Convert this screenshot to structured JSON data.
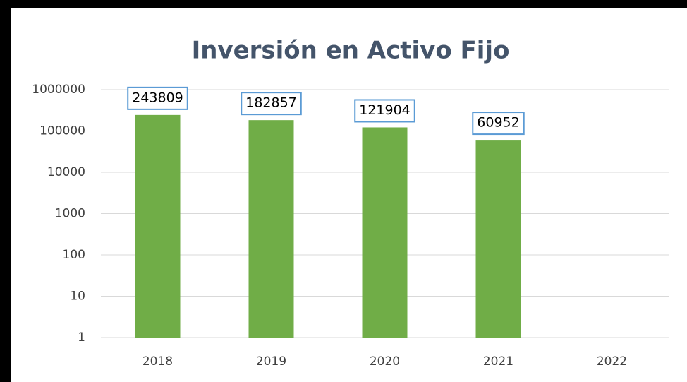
{
  "chart_data": {
    "type": "bar",
    "title": "Inversión en Activo Fijo",
    "categories": [
      "2018",
      "2019",
      "2020",
      "2021",
      "2022"
    ],
    "values": [
      243809,
      182857,
      121904,
      60952,
      null
    ],
    "color": "#70ad47",
    "log_scale": true,
    "ylim": [
      1,
      1000000
    ],
    "yticks": [
      1,
      10,
      100,
      1000,
      10000,
      100000,
      1000000
    ],
    "grid": true
  }
}
